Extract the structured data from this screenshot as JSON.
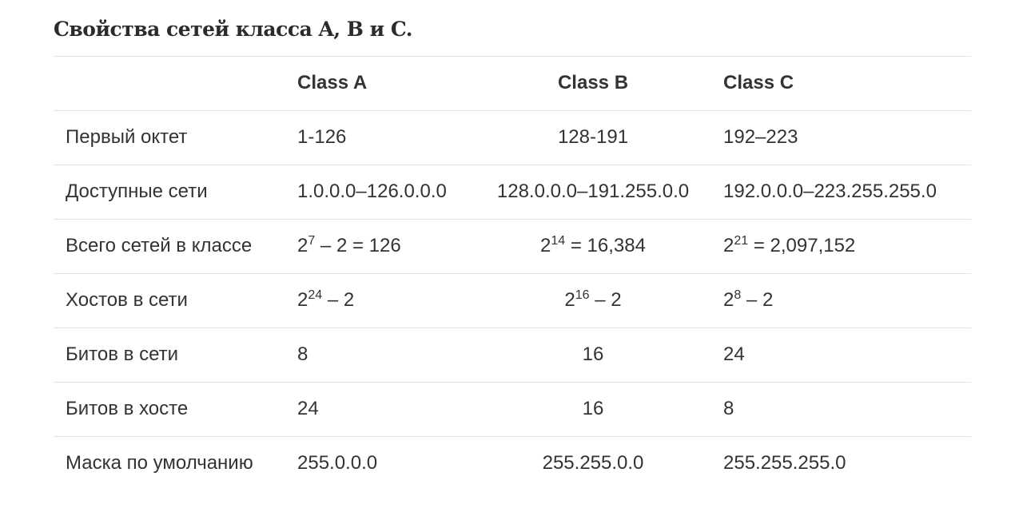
{
  "title": "Свойства сетей класса A, B и C.",
  "table": {
    "columns": [
      "Class A",
      "Class B",
      "Class C"
    ],
    "rows": [
      {
        "label": "Первый октет",
        "cells": [
          "1-126",
          "128-191",
          "192–223"
        ]
      },
      {
        "label": "Доступные сети",
        "cells": [
          "1.0.0.0–126.0.0.0",
          "128.0.0.0–191.255.0.0",
          "192.0.0.0–223.255.255.0"
        ]
      },
      {
        "label": "Всего сетей в классе",
        "cells": [
          {
            "base": "2",
            "sup": "7",
            "rest": " – 2 = 126"
          },
          {
            "base": "2",
            "sup": "14",
            "rest": " = 16,384"
          },
          {
            "base": "2",
            "sup": "21",
            "rest": " = 2,097,152"
          }
        ]
      },
      {
        "label": "Хостов в сети",
        "cells": [
          {
            "base": "2",
            "sup": "24",
            "rest": " – 2"
          },
          {
            "base": "2",
            "sup": "16",
            "rest": " – 2"
          },
          {
            "base": "2",
            "sup": "8",
            "rest": " – 2"
          }
        ]
      },
      {
        "label": "Битов в сети",
        "cells": [
          "8",
          "16",
          "24"
        ]
      },
      {
        "label": "Битов в хосте",
        "cells": [
          "24",
          "16",
          "8"
        ]
      },
      {
        "label": "Маска по умолчанию",
        "cells": [
          "255.0.0.0",
          "255.255.0.0",
          "255.255.255.0"
        ]
      }
    ]
  }
}
